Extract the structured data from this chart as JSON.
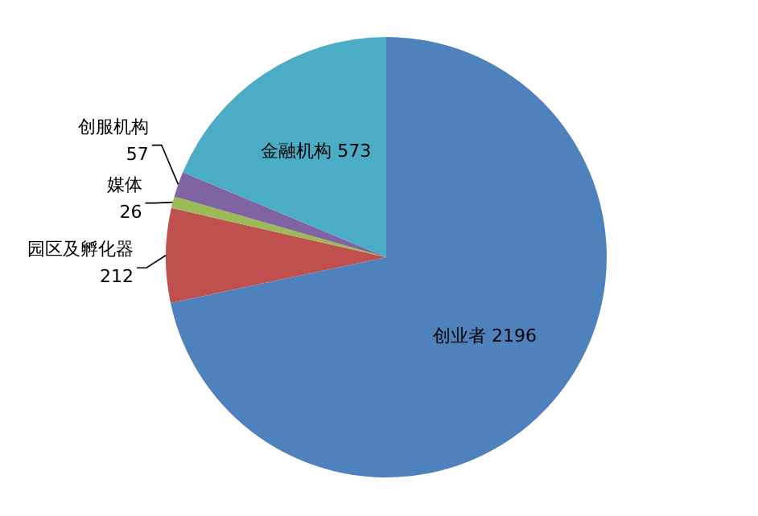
{
  "chart_data": {
    "type": "pie",
    "categories": [
      "创业者",
      "园区及孵化器",
      "媒体",
      "创服机构",
      "金融机构"
    ],
    "values": [
      2196,
      212,
      26,
      57,
      573
    ],
    "colors": [
      "#4f81bd",
      "#c0504d",
      "#9bbb59",
      "#8064a2",
      "#4bacc6"
    ],
    "data_labels": true
  }
}
